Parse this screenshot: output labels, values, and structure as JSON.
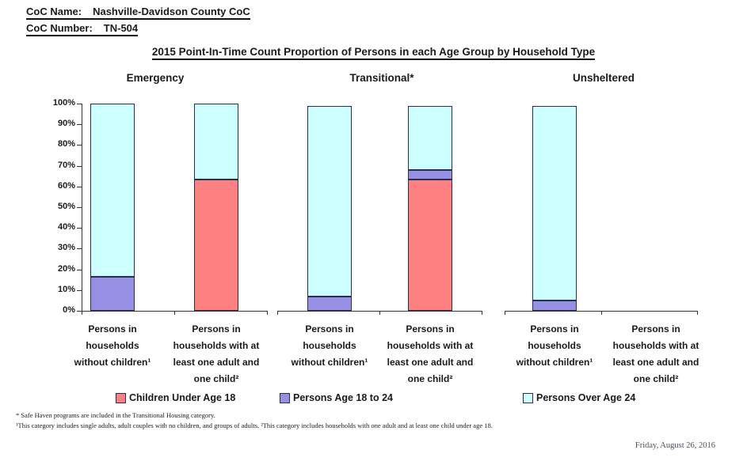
{
  "header": {
    "coc_name_label": "CoC Name:",
    "coc_name_value": "Nashville-Davidson County CoC",
    "coc_number_label": "CoC Number:",
    "coc_number_value": "TN-504"
  },
  "title": "2015 Point-In-Time Count Proportion of Persons in each Age Group by Household Type",
  "legend": {
    "items": [
      {
        "label": "Children Under Age 18",
        "color": "#FF8080"
      },
      {
        "label": "Persons Age 18 to 24",
        "color": "#968FE3"
      },
      {
        "label": "Persons Over Age 24",
        "color": "#CCFFFF"
      }
    ]
  },
  "footnotes": {
    "line1": "* Safe Haven programs are included in the Transitional Housing category.",
    "line2": "¹This category includes single adults, adult couples with no children, and groups of adults. ²This category includes households with one adult and at least one child under age 18."
  },
  "date": "Friday, August 26, 2016",
  "colors": {
    "under18": "#FF8080",
    "age18to24": "#968FE3",
    "over24": "#CCFFFF",
    "segment_border": "#27304f",
    "axis": "#333333"
  },
  "chart_data": {
    "type": "bar",
    "stacked": true,
    "title": "2015 Point-In-Time Count Proportion of Persons in each Age Group by Household Type",
    "groups": [
      "Emergency",
      "Transitional*",
      "Unsheltered"
    ],
    "categories": [
      "Persons in\nhouseholds\nwithout children¹",
      "Persons in\nhouseholds with at\nleast one adult and\none child²"
    ],
    "y_axis": {
      "ylim": [
        0,
        100
      ],
      "tick_step": 10,
      "tick_labels": [
        "0%",
        "10%",
        "20%",
        "30%",
        "40%",
        "50%",
        "60%",
        "70%",
        "80%",
        "90%",
        "100%"
      ],
      "grid": false
    },
    "legend_position": "bottom",
    "series": [
      {
        "name": "Children Under Age 18",
        "color": "#FF8080",
        "values_pct": [
          [
            0,
            63.5
          ],
          [
            0,
            63.5
          ],
          [
            0,
            0
          ]
        ]
      },
      {
        "name": "Persons Age 18 to 24",
        "color": "#968FE3",
        "values_pct": [
          [
            16.5,
            0
          ],
          [
            7,
            4.5
          ],
          [
            5,
            0
          ]
        ]
      },
      {
        "name": "Persons Over Age 24",
        "color": "#CCFFFF",
        "values_pct": [
          [
            83.5,
            36.5
          ],
          [
            92,
            31
          ],
          [
            94,
            0
          ]
        ]
      }
    ]
  }
}
